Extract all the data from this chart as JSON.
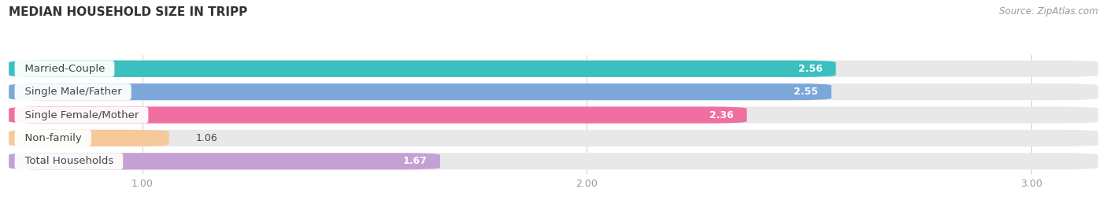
{
  "title": "MEDIAN HOUSEHOLD SIZE IN TRIPP",
  "source": "Source: ZipAtlas.com",
  "categories": [
    "Married-Couple",
    "Single Male/Father",
    "Single Female/Mother",
    "Non-family",
    "Total Households"
  ],
  "values": [
    2.56,
    2.55,
    2.36,
    1.06,
    1.67
  ],
  "bar_colors": [
    "#3bbfbf",
    "#7ba8d8",
    "#f06fa0",
    "#f5c99a",
    "#c4a0d4"
  ],
  "bar_bg_color": "#e8e8e8",
  "background_color": "#f5f5f5",
  "page_bg_color": "#ffffff",
  "xlim_min": 0.7,
  "xlim_max": 3.15,
  "xticks": [
    1.0,
    2.0,
    3.0
  ],
  "label_text_color": "#444444",
  "value_text_color": "#ffffff",
  "title_fontsize": 11,
  "label_fontsize": 9.5,
  "value_fontsize": 9,
  "source_fontsize": 8.5,
  "bar_height": 0.72,
  "rounding_size": 0.09
}
